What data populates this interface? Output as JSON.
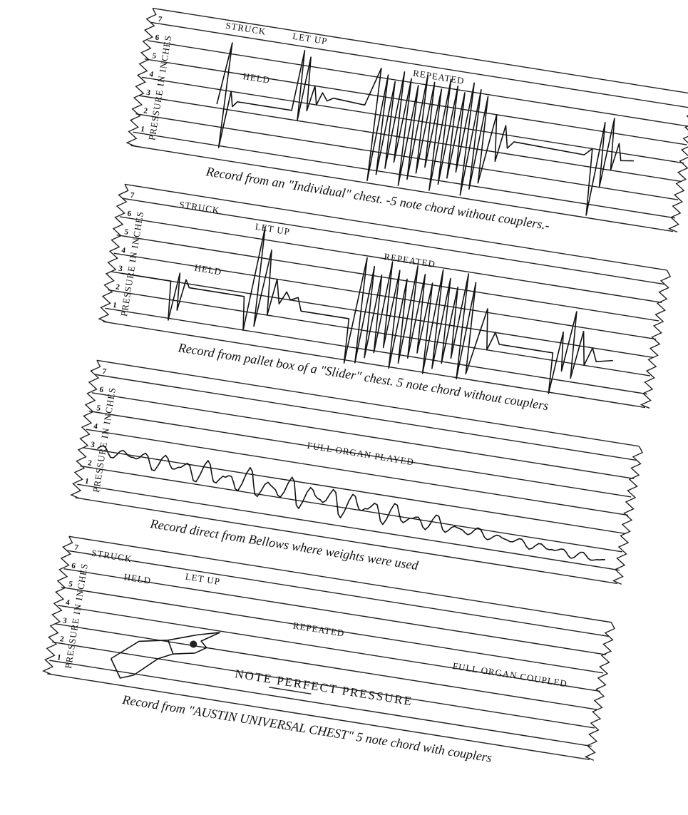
{
  "panels": [
    {
      "tick_labels": [
        "7",
        "6",
        "5",
        "4",
        "3",
        "2",
        "1"
      ],
      "axis_label": "PRESSURE IN INCHES",
      "annotations": [
        "STRUCK",
        "LET UP",
        "HELD",
        "REPEATED"
      ],
      "caption": "Record from an \"Individual\" chest. -5 note chord without couplers.-"
    },
    {
      "tick_labels": [
        "7",
        "6",
        "5",
        "4",
        "3",
        "2",
        "1"
      ],
      "axis_label": "PRESSURE IN INCHES",
      "annotations": [
        "STRUCK",
        "LET UP",
        "HELD",
        "REPEATED"
      ],
      "caption": "Record from pallet box of a \"Slider\" chest. 5 note chord without couplers"
    },
    {
      "tick_labels": [
        "7",
        "6",
        "5",
        "4",
        "3",
        "2",
        "1"
      ],
      "axis_label": "PRESSURE IN INCHES",
      "annotations": [
        "FULL ORGAN PLAYED"
      ],
      "caption": "Record direct from Bellows where weights were used"
    },
    {
      "tick_labels": [
        "7",
        "6",
        "5",
        "4",
        "3",
        "2",
        "1"
      ],
      "axis_label": "PRESSURE IN INCHES",
      "annotations": [
        "STRUCK",
        "LET UP",
        "HELD",
        "REPEATED",
        "FULL ORGAN COUPLED",
        "NOTE PERFECT PRESSURE"
      ],
      "caption": "Record from \"AUSTIN UNIVERSAL CHEST\" 5 note chord with couplers"
    }
  ]
}
